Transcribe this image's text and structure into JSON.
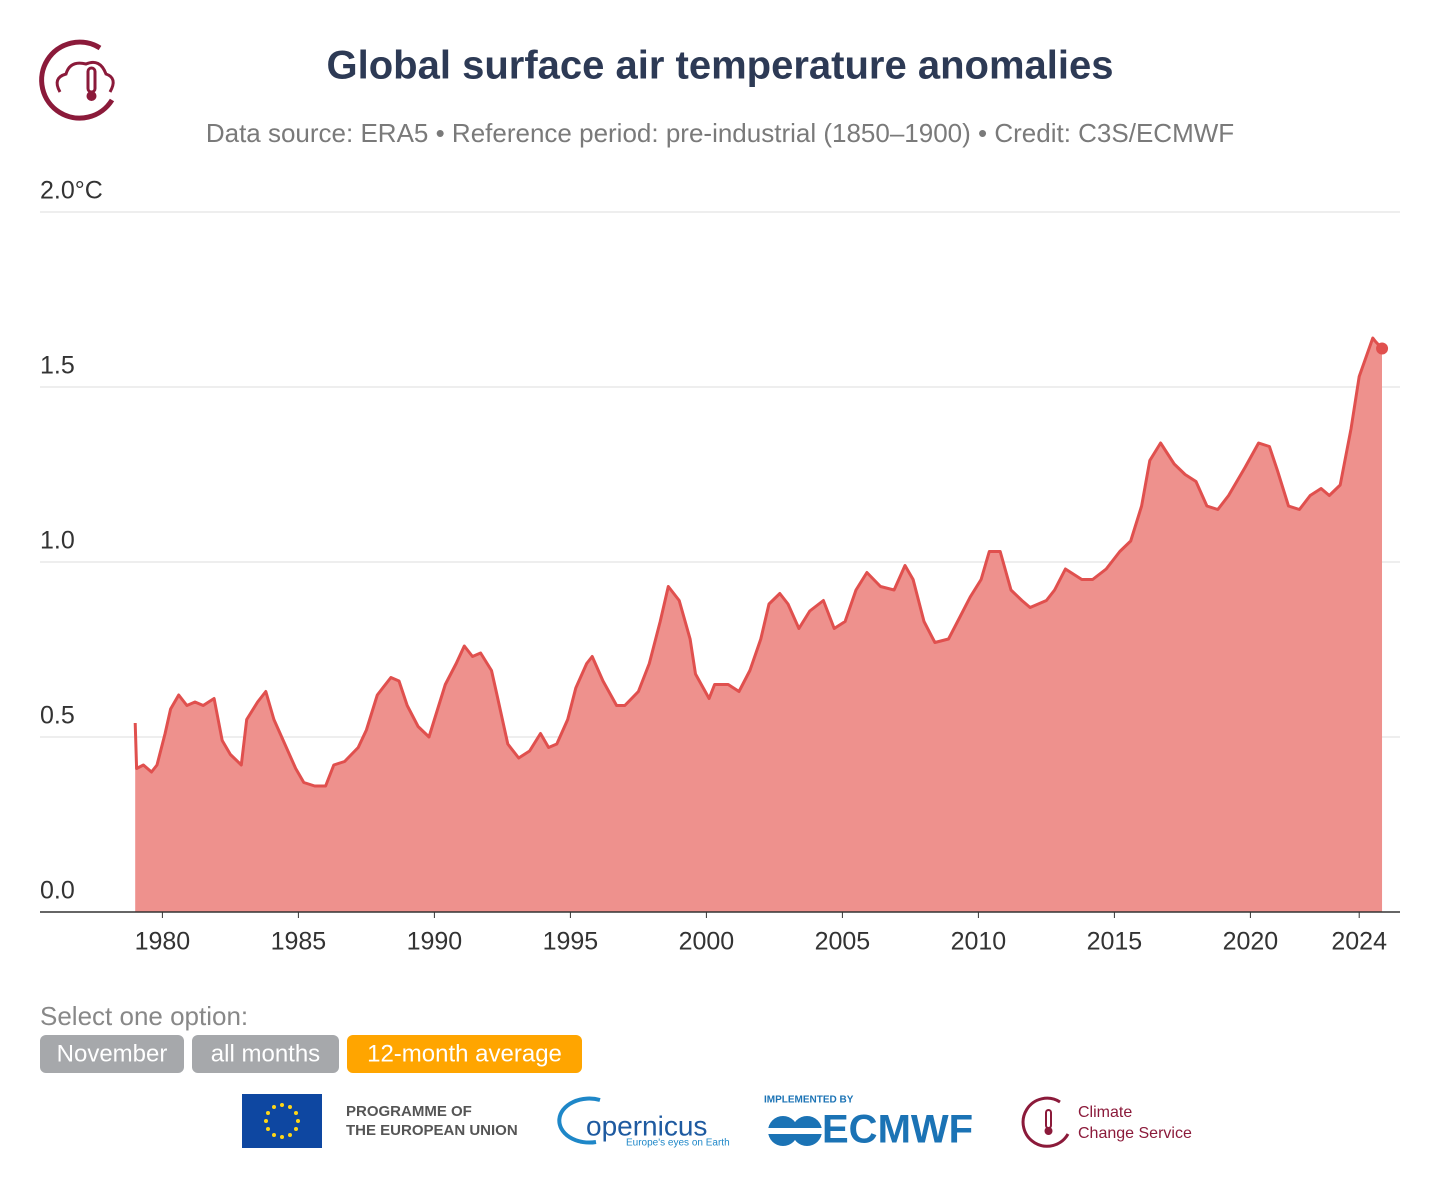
{
  "chart_data": {
    "type": "area",
    "title": "Global surface air temperature anomalies",
    "subtitle": "Data source: ERA5 • Reference period: pre-industrial (1850–1900) • Credit: C3S/ECMWF",
    "color": "#e0504e",
    "fill_color": "#ee918d",
    "x": [
      1979.0,
      1979.05,
      1979.3,
      1979.6,
      1979.8,
      1980.1,
      1980.3,
      1980.6,
      1980.9,
      1981.2,
      1981.5,
      1981.7,
      1981.9,
      1982.2,
      1982.5,
      1982.9,
      1983.1,
      1983.5,
      1983.8,
      1984.1,
      1984.5,
      1984.9,
      1985.2,
      1985.6,
      1986.0,
      1986.3,
      1986.7,
      1987.2,
      1987.5,
      1987.9,
      1988.4,
      1988.7,
      1989.0,
      1989.4,
      1989.8,
      1990.0,
      1990.4,
      1990.8,
      1991.1,
      1991.4,
      1991.7,
      1992.1,
      1992.3,
      1992.7,
      1993.1,
      1993.5,
      1993.9,
      1994.2,
      1994.5,
      1994.9,
      1995.2,
      1995.6,
      1995.8,
      1996.2,
      1996.7,
      1997.0,
      1997.5,
      1997.9,
      1998.3,
      1998.6,
      1999.0,
      1999.4,
      1999.6,
      2000.1,
      2000.3,
      2000.8,
      2001.2,
      2001.6,
      2002.0,
      2002.3,
      2002.7,
      2003.0,
      2003.4,
      2003.8,
      2004.3,
      2004.7,
      2005.1,
      2005.5,
      2005.9,
      2006.4,
      2006.9,
      2007.3,
      2007.6,
      2008.0,
      2008.4,
      2008.9,
      2009.3,
      2009.7,
      2010.1,
      2010.4,
      2010.8,
      2011.2,
      2011.6,
      2011.9,
      2012.5,
      2012.8,
      2013.2,
      2013.8,
      2014.2,
      2014.7,
      2015.2,
      2015.6,
      2016.0,
      2016.3,
      2016.7,
      2017.2,
      2017.6,
      2018.0,
      2018.4,
      2018.8,
      2019.2,
      2019.8,
      2020.3,
      2020.7,
      2021.0,
      2021.4,
      2021.8,
      2022.2,
      2022.6,
      2022.9,
      2023.3,
      2023.7,
      2024.0,
      2024.5,
      2024.6,
      2024.84
    ],
    "values": [
      0.54,
      0.41,
      0.42,
      0.4,
      0.42,
      0.51,
      0.58,
      0.62,
      0.59,
      0.6,
      0.59,
      0.6,
      0.61,
      0.49,
      0.45,
      0.42,
      0.55,
      0.6,
      0.63,
      0.55,
      0.48,
      0.41,
      0.37,
      0.36,
      0.36,
      0.42,
      0.43,
      0.47,
      0.52,
      0.62,
      0.67,
      0.66,
      0.59,
      0.53,
      0.5,
      0.55,
      0.65,
      0.71,
      0.76,
      0.73,
      0.74,
      0.69,
      0.62,
      0.48,
      0.44,
      0.46,
      0.51,
      0.47,
      0.48,
      0.55,
      0.64,
      0.71,
      0.73,
      0.66,
      0.59,
      0.59,
      0.63,
      0.71,
      0.83,
      0.93,
      0.89,
      0.78,
      0.68,
      0.61,
      0.65,
      0.65,
      0.63,
      0.69,
      0.78,
      0.88,
      0.91,
      0.88,
      0.81,
      0.86,
      0.89,
      0.81,
      0.83,
      0.92,
      0.97,
      0.93,
      0.92,
      0.99,
      0.95,
      0.83,
      0.77,
      0.78,
      0.84,
      0.9,
      0.95,
      1.03,
      1.03,
      0.92,
      0.89,
      0.87,
      0.89,
      0.92,
      0.98,
      0.95,
      0.95,
      0.98,
      1.03,
      1.06,
      1.16,
      1.29,
      1.34,
      1.28,
      1.25,
      1.23,
      1.16,
      1.15,
      1.19,
      1.27,
      1.34,
      1.33,
      1.26,
      1.16,
      1.15,
      1.19,
      1.21,
      1.19,
      1.22,
      1.38,
      1.53,
      1.64,
      1.63,
      1.61
    ],
    "xlim": [
      1975.5,
      2025.5
    ],
    "xticks": [
      1980,
      1985,
      1990,
      1995,
      2000,
      2005,
      2010,
      2015,
      2020,
      2024
    ],
    "ylim": [
      0,
      2
    ],
    "yticks": [
      {
        "value": 0,
        "label": "0.0"
      },
      0.5,
      {
        "value": 1,
        "label": "1.0"
      },
      1.5,
      {
        "value": 2,
        "label": "2.0°C"
      }
    ],
    "grid": true
  },
  "controls": {
    "prompt": "Select one option:",
    "options": [
      "November",
      "all months",
      "12-month average"
    ],
    "active": 2
  },
  "footer": {
    "eu": "PROGRAMME OF",
    "eu2": "THE EUROPEAN UNION",
    "copernicus": "opernicus",
    "copernicus_tagline": "Europe's eyes on Earth",
    "implemented": "IMPLEMENTED BY",
    "ecmwf": "ECMWF",
    "c3s": "Climate",
    "c3s2": "Change Service"
  }
}
